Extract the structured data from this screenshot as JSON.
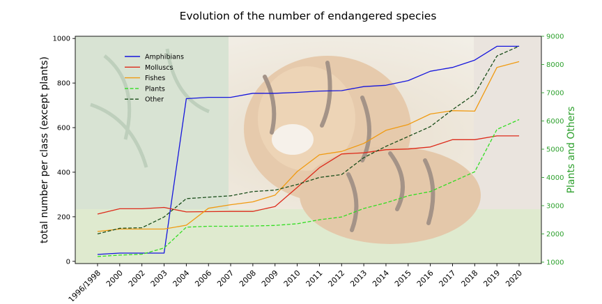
{
  "chart_data": {
    "type": "line",
    "title": "Evolution of the number of endangered species",
    "ylabel": "total number per class (except plants)",
    "y2label": "Plants and Others",
    "ylim": [
      -10,
      1010
    ],
    "y2lim": [
      950,
      9000
    ],
    "yticks": [
      0,
      200,
      400,
      600,
      800,
      1000
    ],
    "y2ticks": [
      1000,
      2000,
      3000,
      4000,
      5000,
      6000,
      7000,
      8000,
      9000
    ],
    "categories": [
      "1996/1998",
      "2000",
      "2002",
      "2003",
      "2004",
      "2006",
      "2007",
      "2008",
      "2009",
      "2010",
      "2011",
      "2012",
      "2013",
      "2014",
      "2015",
      "2016",
      "2017",
      "2018",
      "2019",
      "2020"
    ],
    "background_image": "tiger-photo",
    "legend_position": "upper-left",
    "grid": false,
    "colors": {
      "accent_axis": "#2ca02c",
      "text": "#000000"
    },
    "series": [
      {
        "name": "Amphibians",
        "axis": "left",
        "color": "#1515dd",
        "dash": "solid",
        "values": [
          31,
          37,
          37,
          37,
          730,
          736,
          736,
          754,
          754,
          758,
          764,
          766,
          784,
          790,
          811,
          853,
          870,
          903,
          965,
          965
        ]
      },
      {
        "name": "Molluscs",
        "axis": "left",
        "color": "#dd2a1a",
        "dash": "solid",
        "values": [
          212,
          236,
          236,
          242,
          222,
          223,
          224,
          224,
          246,
          332,
          420,
          482,
          487,
          501,
          504,
          513,
          546,
          546,
          563,
          563
        ]
      },
      {
        "name": "Fishes",
        "axis": "left",
        "color": "#f09a10",
        "dash": "solid",
        "values": [
          134,
          145,
          145,
          145,
          162,
          238,
          254,
          267,
          297,
          403,
          478,
          493,
          529,
          588,
          614,
          661,
          676,
          674,
          870,
          896
        ]
      },
      {
        "name": "Plants",
        "axis": "right",
        "color": "#33dd22",
        "dash": "dashed",
        "values": [
          1200,
          1250,
          1280,
          1500,
          2240,
          2270,
          2270,
          2280,
          2300,
          2360,
          2500,
          2600,
          2900,
          3100,
          3350,
          3500,
          3850,
          4200,
          5700,
          6050
        ]
      },
      {
        "name": "Other",
        "axis": "right",
        "color": "#1a4d1a",
        "dash": "dashed",
        "values": [
          2000,
          2200,
          2220,
          2600,
          3250,
          3300,
          3350,
          3500,
          3550,
          3750,
          4000,
          4100,
          4700,
          5100,
          5450,
          5800,
          6400,
          6950,
          8300,
          8650
        ]
      }
    ]
  }
}
